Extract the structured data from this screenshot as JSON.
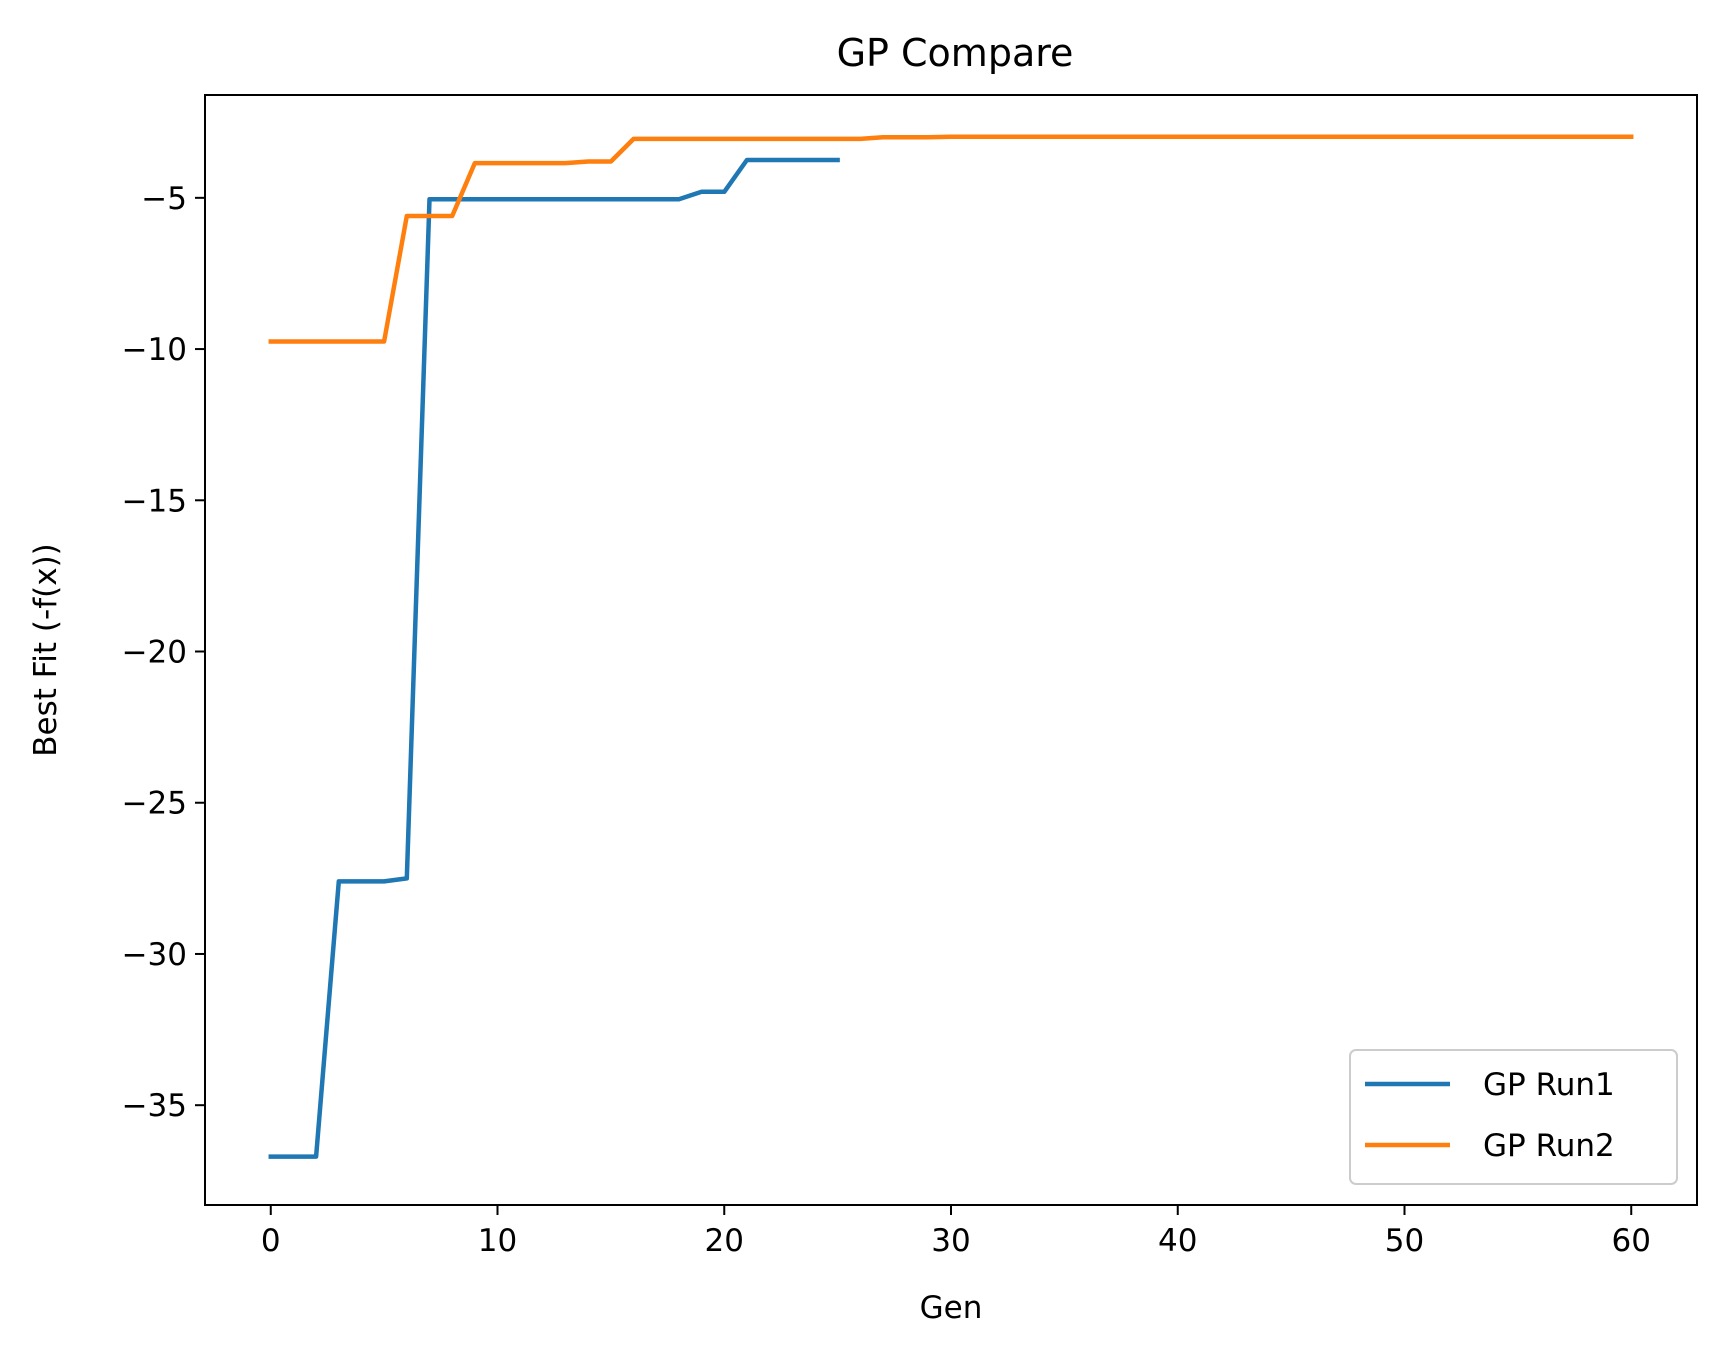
{
  "chart_data": {
    "type": "line",
    "title": "GP Compare",
    "xlabel": "Gen",
    "ylabel": "Best Fit (-f(x))",
    "xlim": [
      -2.9,
      62.9
    ],
    "ylim": [
      -38.3,
      -1.6
    ],
    "xticks": [
      0,
      10,
      20,
      30,
      40,
      50,
      60
    ],
    "yticks": [
      -35,
      -30,
      -25,
      -20,
      -15,
      -10,
      -5
    ],
    "xtick_labels": [
      "0",
      "10",
      "20",
      "30",
      "40",
      "50",
      "60"
    ],
    "ytick_labels": [
      "−35",
      "−30",
      "−25",
      "−20",
      "−15",
      "−10",
      "−5"
    ],
    "grid": false,
    "legend_position": "lower right",
    "series": [
      {
        "name": "GP Run1",
        "color": "#1f77b4",
        "x": [
          0,
          1,
          2,
          3,
          4,
          5,
          6,
          7,
          8,
          9,
          10,
          11,
          12,
          13,
          14,
          15,
          16,
          17,
          18,
          19,
          20,
          21,
          22,
          23,
          24,
          25
        ],
        "y": [
          -36.7,
          -36.7,
          -36.7,
          -27.6,
          -27.6,
          -27.6,
          -27.5,
          -5.05,
          -5.05,
          -5.05,
          -5.05,
          -5.05,
          -5.05,
          -5.05,
          -5.05,
          -5.05,
          -5.05,
          -5.05,
          -5.05,
          -4.8,
          -4.8,
          -3.75,
          -3.75,
          -3.75,
          -3.75,
          -3.75
        ]
      },
      {
        "name": "GP Run2",
        "color": "#ff7f0e",
        "x": [
          0,
          1,
          2,
          3,
          4,
          5,
          6,
          7,
          8,
          9,
          10,
          11,
          12,
          13,
          14,
          15,
          16,
          17,
          18,
          19,
          20,
          21,
          22,
          23,
          24,
          25,
          26,
          27,
          28,
          29,
          30,
          31,
          32,
          33,
          34,
          35,
          36,
          37,
          38,
          39,
          40,
          41,
          42,
          43,
          44,
          45,
          46,
          47,
          48,
          49,
          50,
          51,
          52,
          53,
          54,
          55,
          56,
          57,
          58,
          59,
          60
        ],
        "y": [
          -9.75,
          -9.75,
          -9.75,
          -9.75,
          -9.75,
          -9.75,
          -5.6,
          -5.6,
          -5.6,
          -3.85,
          -3.85,
          -3.85,
          -3.85,
          -3.85,
          -3.8,
          -3.8,
          -3.05,
          -3.05,
          -3.05,
          -3.05,
          -3.05,
          -3.05,
          -3.05,
          -3.05,
          -3.05,
          -3.05,
          -3.05,
          -3.0,
          -3.0,
          -3.0,
          -2.98,
          -2.98,
          -2.98,
          -2.98,
          -2.98,
          -2.98,
          -2.98,
          -2.98,
          -2.98,
          -2.98,
          -2.98,
          -2.98,
          -2.98,
          -2.98,
          -2.98,
          -2.98,
          -2.98,
          -2.98,
          -2.98,
          -2.98,
          -2.98,
          -2.98,
          -2.98,
          -2.98,
          -2.98,
          -2.98,
          -2.98,
          -2.98,
          -2.98,
          -2.98,
          -2.98
        ]
      }
    ]
  }
}
